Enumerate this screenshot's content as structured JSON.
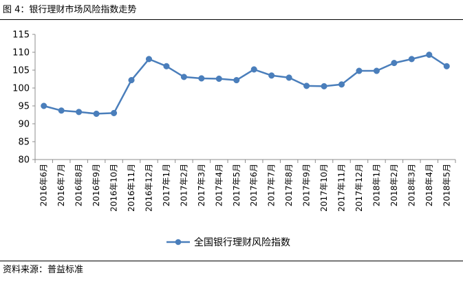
{
  "figure": {
    "title": "图 4：银行理财市场风险指数走势",
    "source": "资料来源：普益标准"
  },
  "chart_data": {
    "type": "line",
    "title": "",
    "xlabel": "",
    "ylabel": "",
    "ylim": [
      80,
      115
    ],
    "yticks": [
      "80",
      "85",
      "90",
      "95",
      "100",
      "105",
      "110",
      "115"
    ],
    "grid": false,
    "legend_position": "bottom",
    "categories": [
      "2016年6月",
      "2016年7月",
      "2016年8月",
      "2016年9月",
      "2016年10月",
      "2016年11月",
      "2016年12月",
      "2017年1月",
      "2017年2月",
      "2017年3月",
      "2017年4月",
      "2017年5月",
      "2017年6月",
      "2017年7月",
      "2017年8月",
      "2017年9月",
      "2017年10月",
      "2017年11月",
      "2017年12月",
      "2018年1月",
      "2018年2月",
      "2018年3月",
      "2018年4月",
      "2018年5月"
    ],
    "series": [
      {
        "name": "全国银行理财风险指数",
        "color": "#4a7ebb",
        "values": [
          95.0,
          93.7,
          93.3,
          92.8,
          93.0,
          102.2,
          108.1,
          106.1,
          103.1,
          102.7,
          102.6,
          102.2,
          105.2,
          103.5,
          102.9,
          100.6,
          100.5,
          101.0,
          104.8,
          104.8,
          107.0,
          108.1,
          109.3,
          106.1
        ]
      }
    ]
  }
}
